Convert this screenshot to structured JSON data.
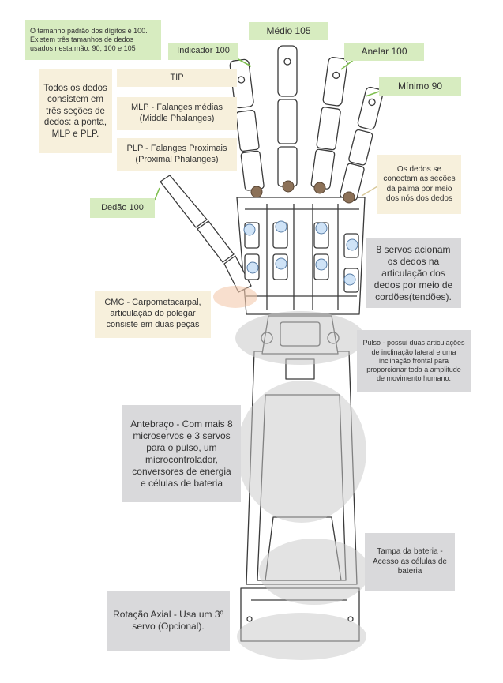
{
  "labels": {
    "note_sizes": "O tamanho padrão dos dígitos é 100. Existem três tamanhos de dedos usados nesta mão: 90, 100 e 105",
    "medio": "Médio 105",
    "indicador": "Indicador 100",
    "anelar": "Anelar 100",
    "minimo": "Mínimo 90",
    "tip": "TIP",
    "three_sections": "Todos os dedos consistem em três seções de dedos: a ponta, MLP e PLP.",
    "mlp": "MLP - Falanges médias (Middle Phalanges)",
    "plp": "PLP - Falanges Proximais (Proximal Phalanges)",
    "connect": "Os dedos se conectam as seções da palma por meio dos nós dos dedos",
    "dedao": "Dedão 100",
    "servos8": "8 servos acionam os dedos na articulação dos dedos por meio de cordões(tendões).",
    "cmc": "CMC - Carpometacarpal, articulação do polegar consiste em duas peças",
    "pulso": "Pulso - possui duas articulações de inclinação lateral e uma inclinação frontal para proporcionar toda a amplitude de movimento humano.",
    "antebraco": "Antebraço - Com mais 8 microservos e 3 servos para o pulso, um microcontrolador, conversores de energia e células de bateria",
    "tampa": "Tampa da bateria - Acesso as células de bateria",
    "rotacao": "Rotação Axial - Usa um 3º servo (Opcional)."
  },
  "colors": {
    "green": "#d7ecc0",
    "cream": "#f7f0dc",
    "gray": "#d9d9db",
    "servo_blue": "#cfe3f7",
    "knuckle_brown": "#8c7158",
    "highlight_gray": "#c8c8c8",
    "highlight_orange": "#f3c9ad"
  }
}
